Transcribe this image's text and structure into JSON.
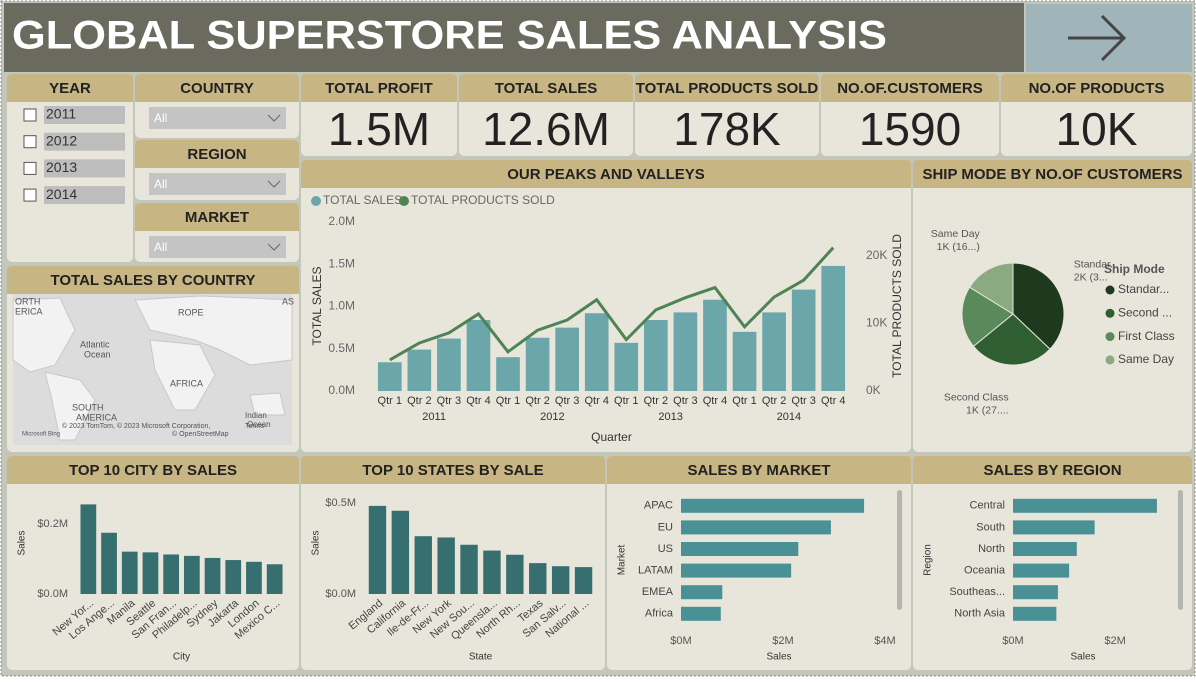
{
  "header": {
    "title": "GLOBAL SUPERSTORE SALES ANALYSIS"
  },
  "slicers": {
    "year": {
      "title": "YEAR",
      "options": [
        "2011",
        "2012",
        "2013",
        "2014"
      ]
    },
    "country": {
      "title": "COUNTRY",
      "value": "All"
    },
    "region": {
      "title": "REGION",
      "value": "All"
    },
    "market": {
      "title": "MARKET",
      "value": "All"
    }
  },
  "kpis": [
    {
      "label": "TOTAL PROFIT",
      "value": "1.5M"
    },
    {
      "label": "TOTAL SALES",
      "value": "12.6M"
    },
    {
      "label": "TOTAL PRODUCTS SOLD",
      "value": "178K"
    },
    {
      "label": "NO.OF.CUSTOMERS",
      "value": "1590"
    },
    {
      "label": "NO.OF PRODUCTS",
      "value": "10K"
    }
  ],
  "map": {
    "title": "TOTAL SALES BY COUNTRY",
    "labels": [
      "ORTH",
      "ERICA",
      "Atlantic",
      "Ocean",
      "ROPE",
      "AFRICA",
      "SOUTH",
      "AMERICA",
      "Indian",
      "Ocean",
      "AS",
      "© 2023 TomTom, © 2023 Microsoft Corporation,",
      "Terms",
      "© OpenStreetMap",
      "Microsoft Bing"
    ]
  },
  "chart_data": [
    {
      "type": "combo",
      "title": "OUR PEAKS AND VALLEYS",
      "x_label": "Quarter",
      "y_label": "TOTAL SALES",
      "y2_label": "TOTAL PRODUCTS SOLD",
      "categories": [
        "Qtr 1",
        "Qtr 2",
        "Qtr 3",
        "Qtr 4",
        "Qtr 1",
        "Qtr 2",
        "Qtr 3",
        "Qtr 4",
        "Qtr 1",
        "Qtr 2",
        "Qtr 3",
        "Qtr 4",
        "Qtr 1",
        "Qtr 2",
        "Qtr 3",
        "Qtr 4"
      ],
      "groups": [
        "2011",
        "2012",
        "2013",
        "2014"
      ],
      "series": [
        {
          "name": "TOTAL SALES",
          "type": "bar",
          "color": "#6aa6aa",
          "values": [
            340000,
            490000,
            620000,
            840000,
            400000,
            630000,
            750000,
            920000,
            570000,
            840000,
            930000,
            1080000,
            700000,
            930000,
            1200000,
            1480000
          ]
        },
        {
          "name": "TOTAL PRODUCTS SOLD",
          "type": "line",
          "axis": "y2",
          "color": "#4e8455",
          "values": [
            4600,
            7100,
            8600,
            11400,
            5800,
            9000,
            10500,
            13500,
            7600,
            12000,
            13800,
            15300,
            9500,
            13900,
            16400,
            21200
          ]
        }
      ],
      "ylim": [
        0,
        2000000
      ],
      "yticks": [
        {
          "value": 0,
          "label": "0.0M"
        },
        {
          "value": 500000,
          "label": "0.5M"
        },
        {
          "value": 1000000,
          "label": "1.0M"
        },
        {
          "value": 1500000,
          "label": "1.5M"
        },
        {
          "value": 2000000,
          "label": "2.0M"
        }
      ],
      "y2lim": [
        0,
        25000
      ],
      "y2ticks": [
        {
          "value": 0,
          "label": "0K"
        },
        {
          "value": 10000,
          "label": "10K"
        },
        {
          "value": 20000,
          "label": "20K"
        }
      ]
    },
    {
      "type": "pie",
      "title": "SHIP MODE BY NO.OF CUSTOMERS",
      "legend_title": "Ship Mode",
      "categories": [
        "Standar...",
        "Second ...",
        "First Class",
        "Same Day"
      ],
      "slice_names": [
        "Standar...",
        "Second Class",
        null,
        "Same Day"
      ],
      "values": [
        1580,
        1150,
        840,
        690
      ],
      "value_labels": [
        "2K (3...",
        "1K (27....",
        null,
        "1K (16...)"
      ],
      "colors": [
        "#1e3a1e",
        "#2f5e33",
        "#5a8a5c",
        "#8aaa82"
      ]
    },
    {
      "type": "bar",
      "title": "TOP 10 CITY BY SALES",
      "x_label": "City",
      "y_label": "Sales",
      "color": "#376f70",
      "categories": [
        "New Yor...",
        "Los Ange...",
        "Manila",
        "Seattle",
        "San Fran...",
        "Philadelp...",
        "Sydney",
        "Jakarta",
        "London",
        "Mexico C..."
      ],
      "values": [
        256000,
        175000,
        121000,
        119000,
        113000,
        109000,
        103000,
        97000,
        92000,
        85000
      ],
      "ylim": [
        0,
        270000
      ],
      "yticks": [
        {
          "value": 0,
          "label": "$0.0M"
        },
        {
          "value": 200000,
          "label": "$0.2M"
        }
      ]
    },
    {
      "type": "bar",
      "title": "TOP 10 STATES BY SALE",
      "x_label": "State",
      "y_label": "Sales",
      "color": "#376f70",
      "categories": [
        "England",
        "California",
        "Ile-de-Fr...",
        "New York",
        "New Sou...",
        "Queensla...",
        "North Rh...",
        "Texas",
        "San Salv...",
        "National ..."
      ],
      "values": [
        485000,
        458000,
        318000,
        311000,
        271000,
        239000,
        216000,
        170000,
        153000,
        148000
      ],
      "ylim": [
        0,
        520000
      ],
      "yticks": [
        {
          "value": 0,
          "label": "$0.0M"
        },
        {
          "value": 500000,
          "label": "$0.5M"
        }
      ]
    },
    {
      "type": "barh",
      "title": "SALES BY MARKET",
      "x_label": "Sales",
      "y_label": "Market",
      "color": "#4a9195",
      "categories": [
        "APAC",
        "EU",
        "US",
        "LATAM",
        "EMEA",
        "Africa"
      ],
      "values": [
        3590000,
        2940000,
        2300000,
        2160000,
        810000,
        780000
      ],
      "xlim": [
        0,
        4000000
      ],
      "xticks": [
        {
          "value": 0,
          "label": "$0M"
        },
        {
          "value": 2000000,
          "label": "$2M"
        },
        {
          "value": 4000000,
          "label": "$4M"
        }
      ]
    },
    {
      "type": "barh",
      "title": "SALES BY REGION",
      "x_label": "Sales",
      "y_label": "Region",
      "color": "#4a9195",
      "categories": [
        "Central",
        "South",
        "North",
        "Oceania",
        "Southeas...",
        "North Asia"
      ],
      "values": [
        2820000,
        1600000,
        1250000,
        1100000,
        880000,
        850000
      ],
      "xlim": [
        0,
        2900000
      ],
      "xticks": [
        {
          "value": 0,
          "label": "$0M"
        },
        {
          "value": 2000000,
          "label": "$2M"
        }
      ]
    }
  ]
}
